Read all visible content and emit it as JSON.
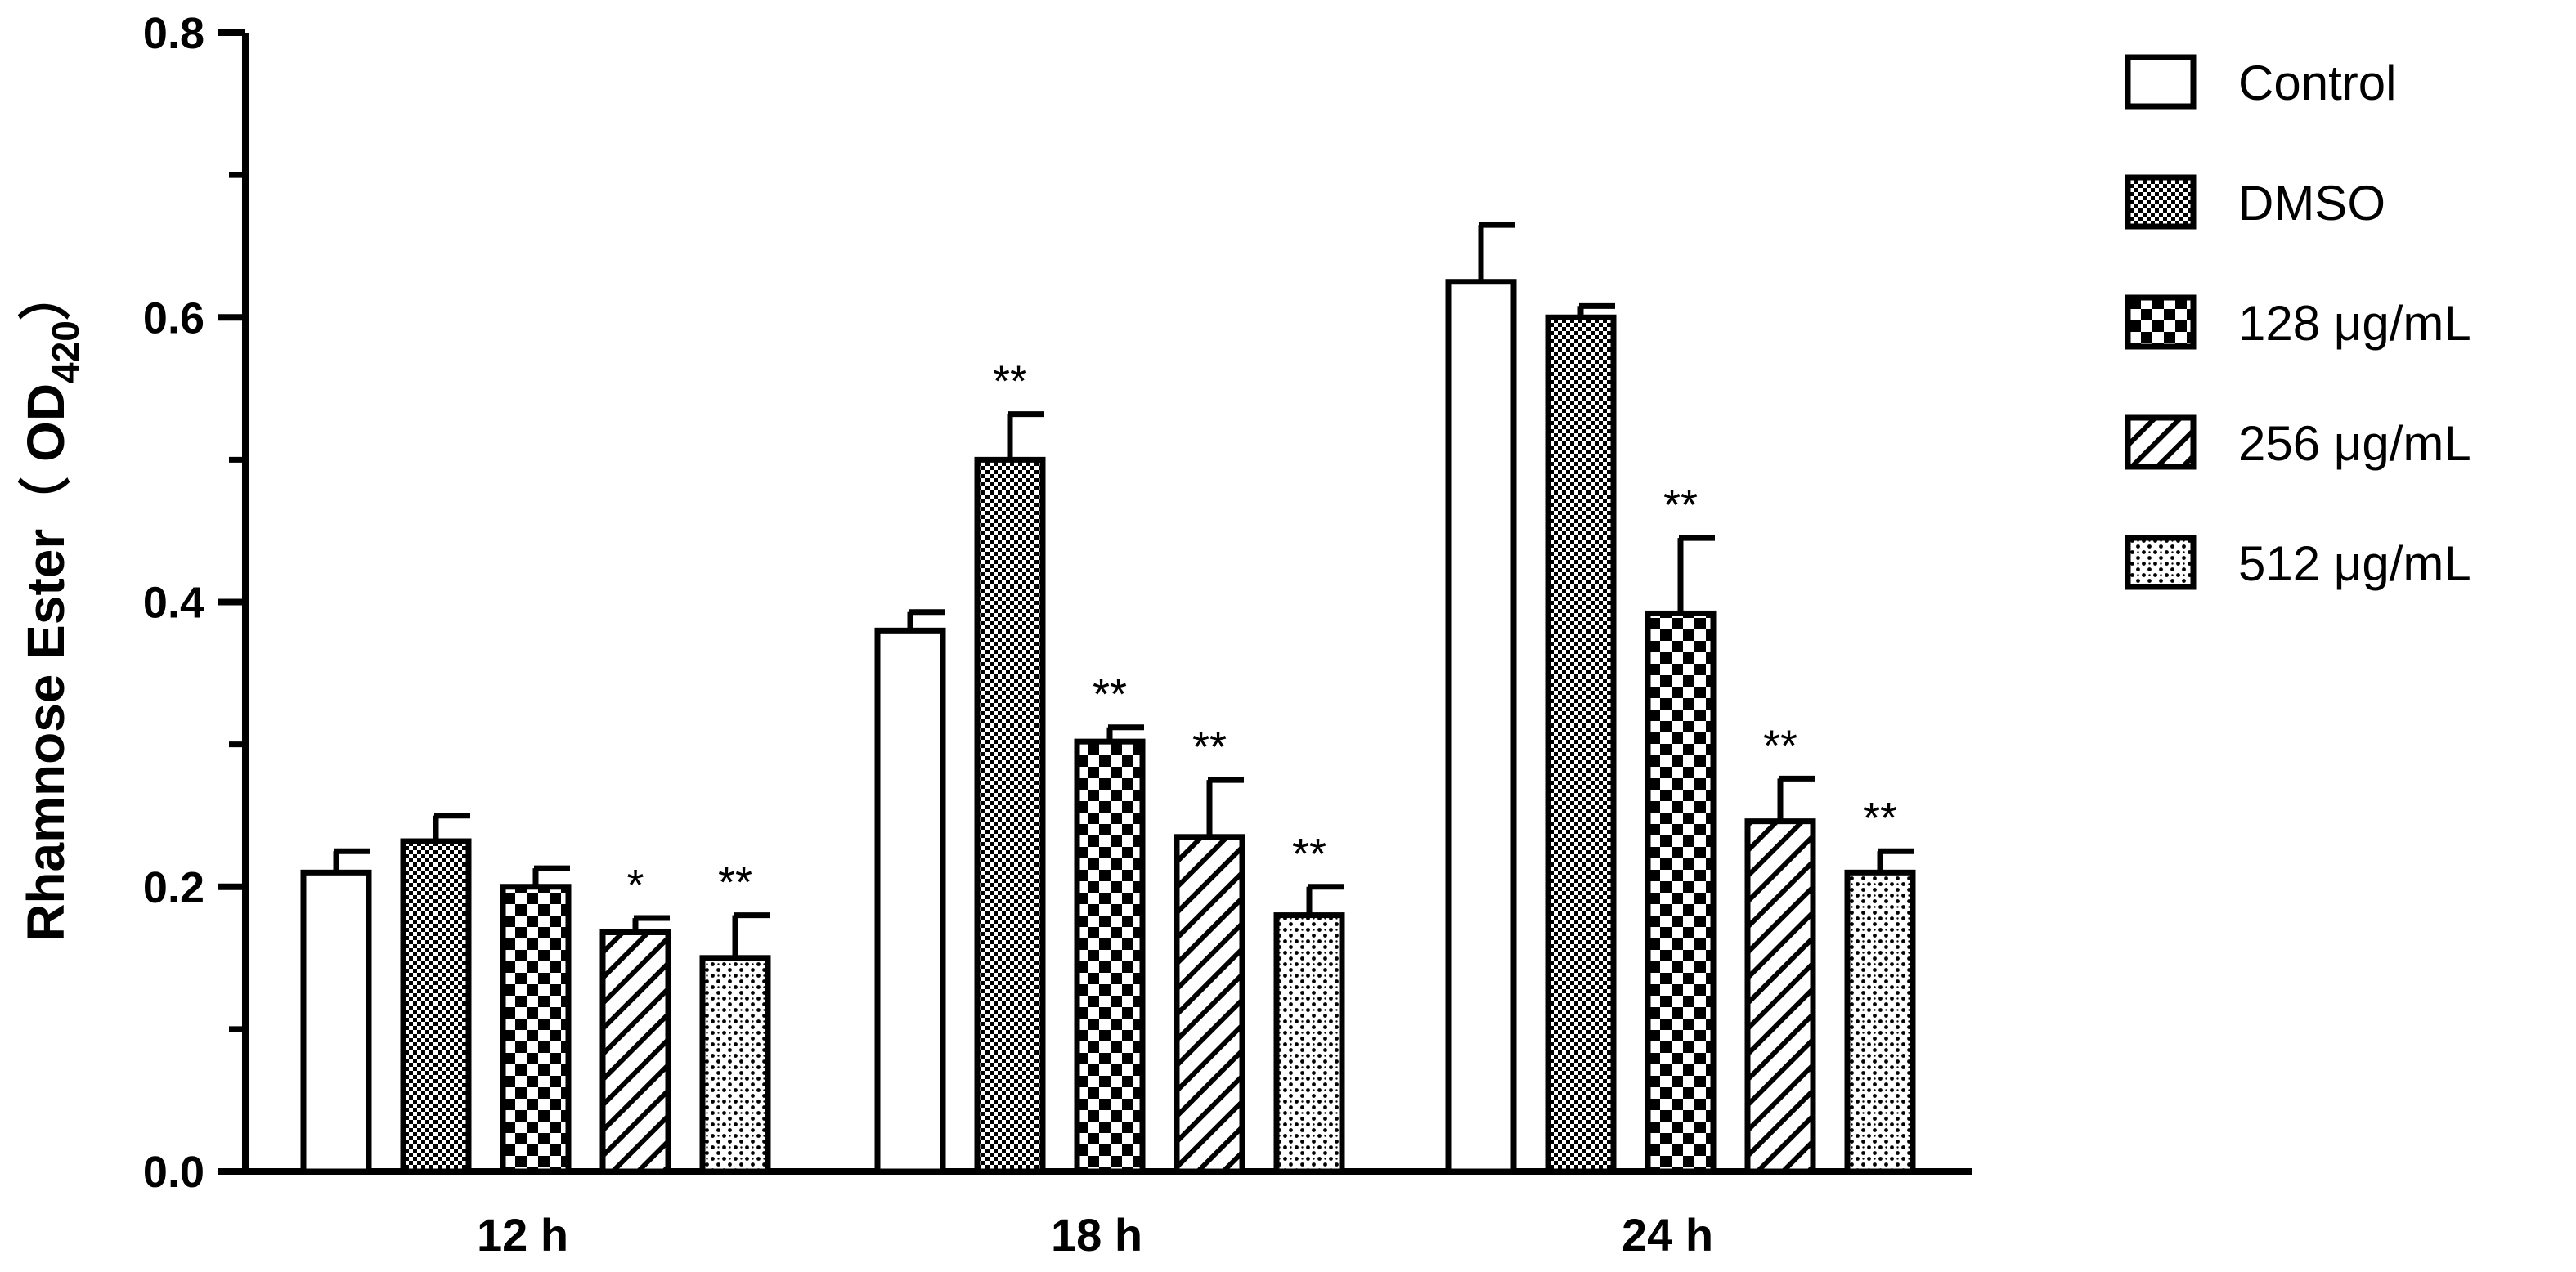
{
  "chart_data": {
    "type": "bar",
    "ylabel": "Rhamnose Ester（ OD",
    "ylabel_sub": "420",
    "ylabel_close": "）",
    "ylim": [
      0,
      0.8
    ],
    "y_ticks": [
      0.0,
      0.2,
      0.4,
      0.6,
      0.8
    ],
    "y_tick_labels": [
      "0.0",
      "0.2",
      "0.4",
      "0.6",
      "0.8"
    ],
    "categories": [
      "12 h",
      "18 h",
      "24 h"
    ],
    "legend_position": "right",
    "series": [
      {
        "name": "Control",
        "pattern": "none",
        "values": [
          0.21,
          0.38,
          0.625
        ],
        "errors": [
          0.015,
          0.013,
          0.04
        ],
        "significance": [
          "",
          "",
          ""
        ]
      },
      {
        "name": "DMSO",
        "pattern": "fine-check",
        "values": [
          0.232,
          0.5,
          0.6
        ],
        "errors": [
          0.018,
          0.032,
          0.008
        ],
        "significance": [
          "",
          "**",
          ""
        ]
      },
      {
        "name": "128 μg/mL",
        "pattern": "checker",
        "values": [
          0.2,
          0.302,
          0.392
        ],
        "errors": [
          0.013,
          0.01,
          0.053
        ],
        "significance": [
          "",
          "**",
          "**"
        ]
      },
      {
        "name": "256 μg/mL",
        "pattern": "diagonal",
        "values": [
          0.168,
          0.235,
          0.246
        ],
        "errors": [
          0.01,
          0.04,
          0.03
        ],
        "significance": [
          "*",
          "**",
          "**"
        ]
      },
      {
        "name": "512 μg/mL",
        "pattern": "dots",
        "values": [
          0.15,
          0.18,
          0.21
        ],
        "errors": [
          0.03,
          0.02,
          0.015
        ],
        "significance": [
          "**",
          "**",
          "**"
        ]
      }
    ]
  }
}
